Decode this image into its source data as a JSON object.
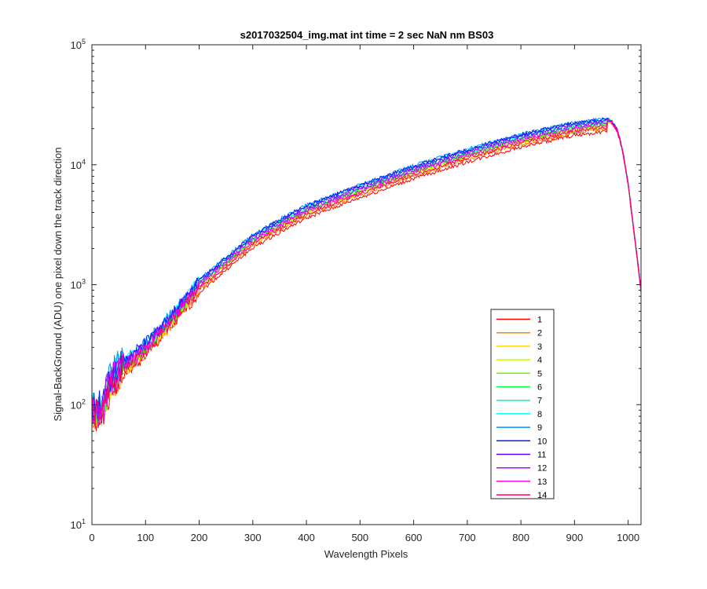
{
  "chart_data": {
    "type": "line",
    "title": "s2017032504_img.mat int time = 2 sec  NaN nm BS03",
    "xlabel": "Wavelength Pixels",
    "ylabel": "Signal-BackGround (ADU) one pixel down the track direction",
    "xlim": [
      0,
      1024
    ],
    "ylim": [
      10,
      100000
    ],
    "yscale": "log",
    "x_ticks": [
      0,
      100,
      200,
      300,
      400,
      500,
      600,
      700,
      800,
      900,
      1000
    ],
    "y_ticks": [
      {
        "value": 10,
        "base": "10",
        "exp": "1"
      },
      {
        "value": 100,
        "base": "10",
        "exp": "2"
      },
      {
        "value": 1000,
        "base": "10",
        "exp": "3"
      },
      {
        "value": 10000,
        "base": "10",
        "exp": "4"
      },
      {
        "value": 100000,
        "base": "10",
        "exp": "5"
      }
    ],
    "grid": false,
    "legend_position": "lower-right",
    "profile_x": [
      0,
      20,
      30,
      50,
      100,
      150,
      200,
      250,
      300,
      350,
      400,
      500,
      600,
      700,
      800,
      900,
      950,
      960,
      970,
      980,
      990,
      1000,
      1010,
      1020,
      1024
    ],
    "profile_y": [
      100,
      95,
      160,
      210,
      330,
      580,
      1100,
      1700,
      2600,
      3500,
      4600,
      6800,
      9800,
      13500,
      18000,
      22500,
      24000,
      24200,
      23000,
      19500,
      13000,
      7000,
      3000,
      1300,
      900
    ],
    "series": [
      {
        "name": "1",
        "color": "#ff0000",
        "scale": 0.78
      },
      {
        "name": "2",
        "color": "#ff8000",
        "scale": 0.82
      },
      {
        "name": "3",
        "color": "#ffd700",
        "scale": 0.85
      },
      {
        "name": "4",
        "color": "#c0ff00",
        "scale": 0.87
      },
      {
        "name": "5",
        "color": "#60ff00",
        "scale": 0.89
      },
      {
        "name": "6",
        "color": "#00ff40",
        "scale": 0.91
      },
      {
        "name": "7",
        "color": "#00ffa0",
        "scale": 0.94
      },
      {
        "name": "8",
        "color": "#00ffff",
        "scale": 0.98
      },
      {
        "name": "9",
        "color": "#0090ff",
        "scale": 1.0
      },
      {
        "name": "10",
        "color": "#0020ff",
        "scale": 0.99
      },
      {
        "name": "11",
        "color": "#6000ff",
        "scale": 0.96
      },
      {
        "name": "12",
        "color": "#c000ff",
        "scale": 0.92
      },
      {
        "name": "13",
        "color": "#ff00e0",
        "scale": 0.88
      },
      {
        "name": "14",
        "color": "#ff0060",
        "scale": 0.84
      }
    ]
  }
}
